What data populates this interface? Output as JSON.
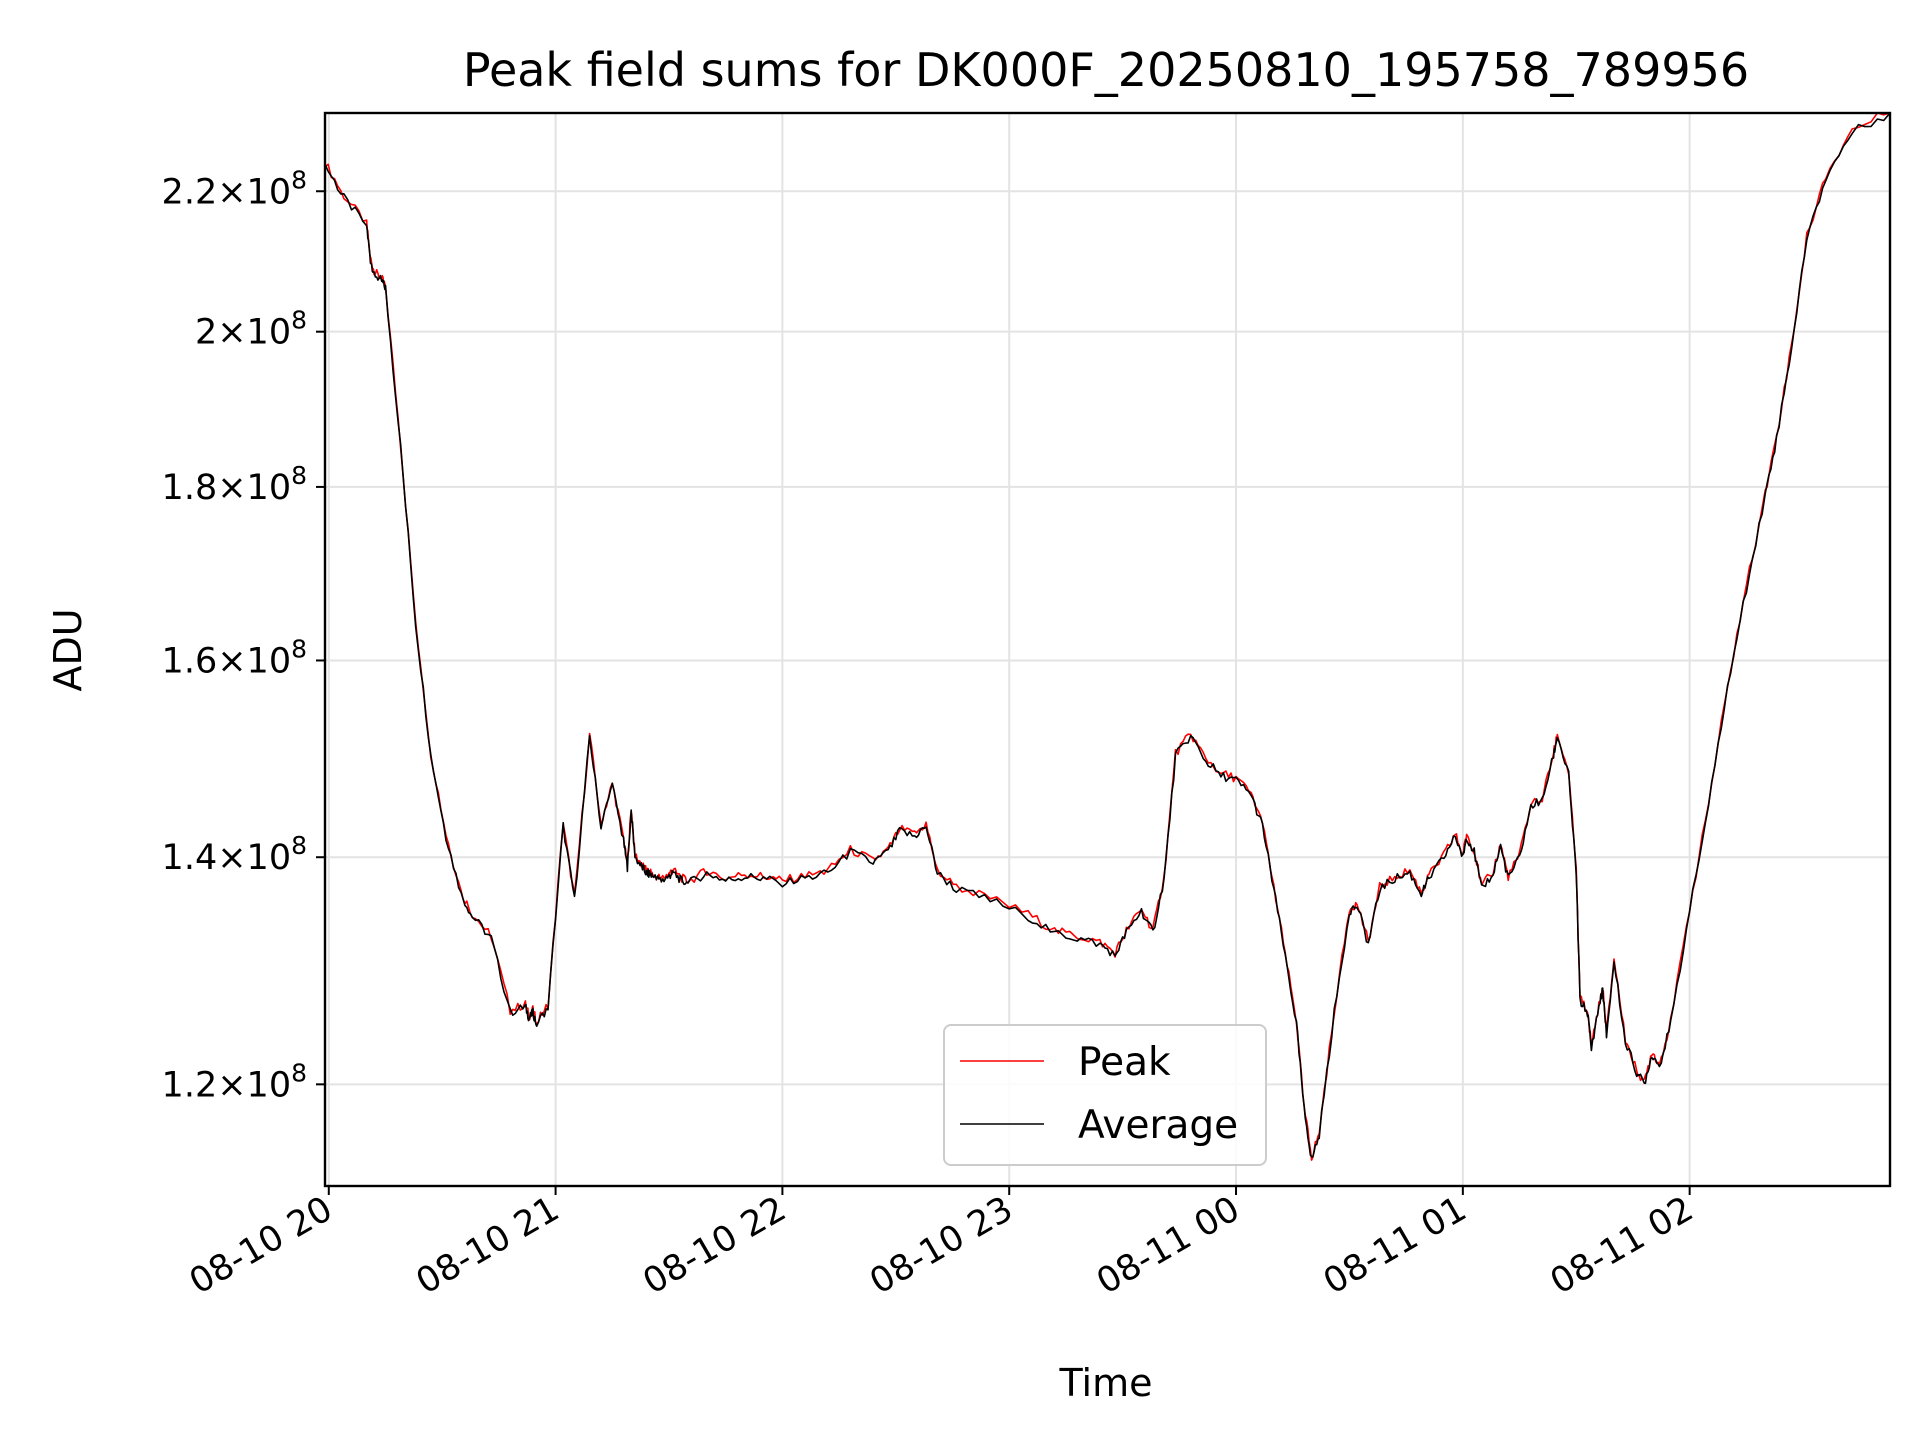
{
  "chart_data": {
    "type": "line",
    "title": "Peak field sums for DK000F_20250810_195758_789956",
    "xlabel": "Time",
    "ylabel": "ADU",
    "y_scale": "log",
    "ylim": [
      112000000.0,
      232000000.0
    ],
    "xlim": [
      "2025-08-10 19:59",
      "2025-08-11 02:53"
    ],
    "grid": true,
    "legend_position": "lower center",
    "x_ticks": [
      {
        "t": "2025-08-10 20:00",
        "label": "08-10 20"
      },
      {
        "t": "2025-08-10 21:00",
        "label": "08-10 21"
      },
      {
        "t": "2025-08-10 22:00",
        "label": "08-10 22"
      },
      {
        "t": "2025-08-10 23:00",
        "label": "08-10 23"
      },
      {
        "t": "2025-08-11 00:00",
        "label": "08-11 00"
      },
      {
        "t": "2025-08-11 01:00",
        "label": "08-11 01"
      },
      {
        "t": "2025-08-11 02:00",
        "label": "08-11 02"
      }
    ],
    "y_ticks": [
      {
        "value": 120000000.0,
        "mantissa": "1.2"
      },
      {
        "value": 140000000.0,
        "mantissa": "1.4"
      },
      {
        "value": 160000000.0,
        "mantissa": "1.6"
      },
      {
        "value": 180000000.0,
        "mantissa": "1.8"
      },
      {
        "value": 200000000.0,
        "mantissa": "2"
      },
      {
        "value": 220000000.0,
        "mantissa": "2.2"
      }
    ],
    "y_tick_times": "×",
    "y_tick_base": "10",
    "y_tick_exponent": "8",
    "series": [
      {
        "name": "Peak",
        "color": "#ff0000",
        "offset": 0.0015
      },
      {
        "name": "Average",
        "color": "#000000",
        "offset": 0
      }
    ],
    "x": [
      "2025-08-10 19:59",
      "2025-08-10 20:04",
      "2025-08-10 20:10",
      "2025-08-10 20:11",
      "2025-08-10 20:12",
      "2025-08-10 20:14",
      "2025-08-10 20:15",
      "2025-08-10 20:19",
      "2025-08-10 20:23",
      "2025-08-10 20:27",
      "2025-08-10 20:31",
      "2025-08-10 20:35",
      "2025-08-10 20:38",
      "2025-08-10 20:43",
      "2025-08-10 20:48",
      "2025-08-10 20:52",
      "2025-08-10 20:53",
      "2025-08-10 20:54",
      "2025-08-10 20:55",
      "2025-08-10 20:58",
      "2025-08-10 21:02",
      "2025-08-10 21:05",
      "2025-08-10 21:09",
      "2025-08-10 21:12",
      "2025-08-10 21:15",
      "2025-08-10 21:18",
      "2025-08-10 21:19",
      "2025-08-10 21:20",
      "2025-08-10 21:21",
      "2025-08-10 21:23",
      "2025-08-10 21:24",
      "2025-08-10 21:25",
      "2025-08-10 21:26",
      "2025-08-10 21:28",
      "2025-08-10 21:30",
      "2025-08-10 21:31",
      "2025-08-10 21:33",
      "2025-08-10 21:35",
      "2025-08-10 21:40",
      "2025-08-10 21:45",
      "2025-08-10 21:50",
      "2025-08-10 21:55",
      "2025-08-10 22:00",
      "2025-08-10 22:06",
      "2025-08-10 22:12",
      "2025-08-10 22:18",
      "2025-08-10 22:24",
      "2025-08-10 22:28",
      "2025-08-10 22:31",
      "2025-08-10 22:35",
      "2025-08-10 22:38",
      "2025-08-10 22:41",
      "2025-08-10 22:46",
      "2025-08-10 22:55",
      "2025-08-10 23:05",
      "2025-08-10 23:12",
      "2025-08-10 23:18",
      "2025-08-10 23:24",
      "2025-08-10 23:28",
      "2025-08-10 23:31",
      "2025-08-10 23:35",
      "2025-08-10 23:38",
      "2025-08-10 23:41",
      "2025-08-10 23:44",
      "2025-08-10 23:48",
      "2025-08-10 23:52",
      "2025-08-10 23:56",
      "2025-08-11 00:00",
      "2025-08-11 00:04",
      "2025-08-11 00:07",
      "2025-08-11 00:10",
      "2025-08-11 00:13",
      "2025-08-11 00:16",
      "2025-08-11 00:18",
      "2025-08-11 00:20",
      "2025-08-11 00:22",
      "2025-08-11 00:26",
      "2025-08-11 00:30",
      "2025-08-11 00:32",
      "2025-08-11 00:35",
      "2025-08-11 00:38",
      "2025-08-11 00:42",
      "2025-08-11 00:46",
      "2025-08-11 00:49",
      "2025-08-11 00:51",
      "2025-08-11 00:55",
      "2025-08-11 00:58",
      "2025-08-11 01:00",
      "2025-08-11 01:01",
      "2025-08-11 01:03",
      "2025-08-11 01:05",
      "2025-08-11 01:08",
      "2025-08-11 01:10",
      "2025-08-11 01:12",
      "2025-08-11 01:15",
      "2025-08-11 01:18",
      "2025-08-11 01:21",
      "2025-08-11 01:24",
      "2025-08-11 01:25",
      "2025-08-11 01:28",
      "2025-08-11 01:30",
      "2025-08-11 01:31",
      "2025-08-11 01:33",
      "2025-08-11 01:34",
      "2025-08-11 01:36",
      "2025-08-11 01:37",
      "2025-08-11 01:38",
      "2025-08-11 01:40",
      "2025-08-11 01:43",
      "2025-08-11 01:46",
      "2025-08-11 01:48",
      "2025-08-11 01:50",
      "2025-08-11 01:52",
      "2025-08-11 01:55",
      "2025-08-11 02:00",
      "2025-08-11 02:05",
      "2025-08-11 02:10",
      "2025-08-11 02:15",
      "2025-08-11 02:20",
      "2025-08-11 02:23",
      "2025-08-11 02:27",
      "2025-08-11 02:31",
      "2025-08-11 02:36",
      "2025-08-11 02:43",
      "2025-08-11 02:53"
    ],
    "values": [
      224000000.0,
      219000000.0,
      215000000.0,
      210000000.0,
      208000000.0,
      207000000.0,
      206000000.0,
      185000000.0,
      164000000.0,
      150000000.0,
      142000000.0,
      136500000.0,
      134500000.0,
      132500000.0,
      126000000.0,
      126500000.0,
      125500000.0,
      126000000.0,
      125000000.0,
      126500000.0,
      143000000.0,
      136000000.0,
      152000000.0,
      143000000.0,
      147000000.0,
      141500000.0,
      139000000.0,
      144500000.0,
      140000000.0,
      139000000.0,
      138500000.0,
      138400000.0,
      138100000.0,
      137800000.0,
      138200000.0,
      138600000.0,
      137900000.0,
      137500000.0,
      138500000.0,
      137800000.0,
      138200000.0,
      138000000.0,
      137600000.0,
      138000000.0,
      138500000.0,
      140500000.0,
      139500000.0,
      140500000.0,
      142500000.0,
      142000000.0,
      143000000.0,
      138500000.0,
      137000000.0,
      136000000.0,
      134500000.0,
      133000000.0,
      132500000.0,
      132000000.0,
      131000000.0,
      133000000.0,
      135000000.0,
      133000000.0,
      138000000.0,
      150000000.0,
      152000000.0,
      149500000.0,
      148000000.0,
      147500000.0,
      146000000.0,
      143000000.0,
      137000000.0,
      131000000.0,
      125000000.0,
      118000000.0,
      114000000.0,
      116000000.0,
      126000000.0,
      135000000.0,
      135500000.0,
      132000000.0,
      137000000.0,
      138000000.0,
      138500000.0,
      136500000.0,
      138000000.0,
      140000000.0,
      142000000.0,
      140000000.0,
      142000000.0,
      140500000.0,
      137000000.0,
      138500000.0,
      141000000.0,
      138000000.0,
      140000000.0,
      145000000.0,
      145500000.0,
      150000000.0,
      152000000.0,
      148000000.0,
      138500000.0,
      127000000.0,
      126000000.0,
      123000000.0,
      126500000.0,
      128000000.0,
      124000000.0,
      130500000.0,
      123500000.0,
      121000000.0,
      120000000.0,
      122500000.0,
      121500000.0,
      125000000.0,
      135000000.0,
      145000000.0,
      157000000.0,
      168000000.0,
      179000000.0,
      186000000.0,
      198000000.0,
      213000000.0,
      222000000.0,
      229000000.0,
      232000000.0
    ],
    "legend": [
      "Peak",
      "Average"
    ]
  }
}
